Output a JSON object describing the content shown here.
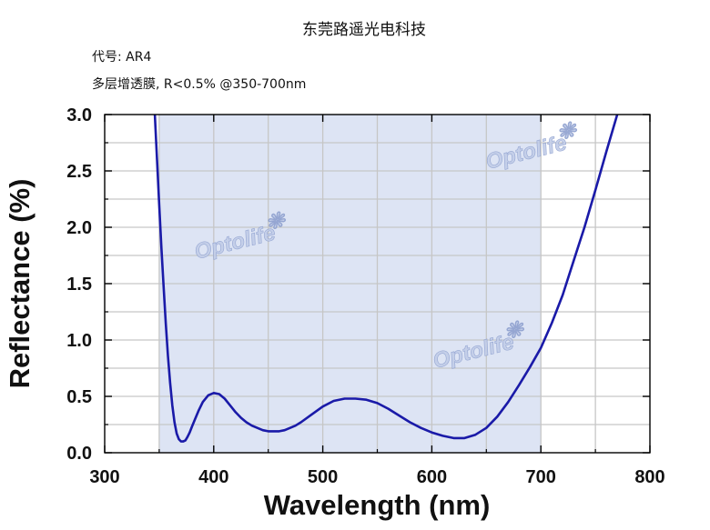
{
  "header": {
    "company": "东莞路遥光电科技",
    "code_line": "代号: AR4",
    "spec_line": "多层增透膜, R<0.5% @350-700nm"
  },
  "watermark": {
    "text": "Optolife"
  },
  "colors": {
    "curve": "#1a1aa8",
    "band_fill": "#dde4f4",
    "grid": "#c6c6c6",
    "axis": "#000000"
  },
  "chart_data": {
    "type": "line",
    "title": "",
    "xlabel": "Wavelength (nm)",
    "ylabel": "Reflectance (%)",
    "xlim": [
      300,
      800
    ],
    "ylim": [
      0,
      3.0
    ],
    "x_ticks": [
      300,
      400,
      500,
      600,
      700,
      800
    ],
    "x_tick_labels": [
      "300",
      "400",
      "500",
      "600",
      "700",
      "800"
    ],
    "y_ticks": [
      0,
      0.5,
      1.0,
      1.5,
      2.0,
      2.5,
      3.0
    ],
    "y_tick_labels": [
      "0.0",
      "0.5",
      "1.0",
      "1.5",
      "2.0",
      "2.5",
      "3.0"
    ],
    "grid": true,
    "highlight_band": [
      350,
      700
    ],
    "series": [
      {
        "x": [
          346,
          348,
          350,
          352,
          354,
          356,
          358,
          360,
          362,
          364,
          366,
          368,
          370,
          372,
          374,
          376,
          378,
          380,
          383,
          386,
          390,
          395,
          400,
          405,
          410,
          415,
          420,
          425,
          430,
          435,
          440,
          445,
          450,
          455,
          460,
          465,
          470,
          475,
          480,
          490,
          500,
          510,
          520,
          530,
          540,
          550,
          560,
          570,
          580,
          590,
          600,
          610,
          620,
          630,
          640,
          650,
          660,
          670,
          680,
          690,
          700,
          710,
          720,
          730,
          740,
          750,
          760,
          770
        ],
        "y": [
          3.0,
          2.6,
          2.2,
          1.82,
          1.48,
          1.15,
          0.86,
          0.62,
          0.42,
          0.27,
          0.17,
          0.12,
          0.1,
          0.1,
          0.11,
          0.14,
          0.18,
          0.23,
          0.3,
          0.37,
          0.45,
          0.51,
          0.53,
          0.52,
          0.48,
          0.42,
          0.36,
          0.31,
          0.27,
          0.24,
          0.22,
          0.2,
          0.19,
          0.19,
          0.19,
          0.2,
          0.22,
          0.24,
          0.27,
          0.34,
          0.41,
          0.46,
          0.48,
          0.48,
          0.47,
          0.44,
          0.39,
          0.33,
          0.27,
          0.22,
          0.18,
          0.15,
          0.13,
          0.13,
          0.16,
          0.22,
          0.32,
          0.45,
          0.6,
          0.76,
          0.93,
          1.15,
          1.4,
          1.7,
          2.0,
          2.33,
          2.67,
          3.0
        ]
      }
    ]
  }
}
